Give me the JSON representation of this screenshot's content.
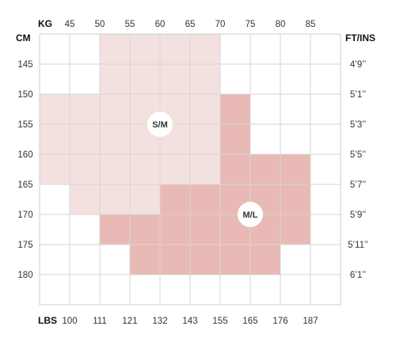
{
  "chart_data": {
    "type": "heatmap",
    "units": {
      "top": "KG",
      "left": "CM",
      "right": "FT/INS",
      "bottom": "LBS"
    },
    "kg_ticks": [
      "45",
      "50",
      "55",
      "60",
      "65",
      "70",
      "75",
      "80",
      "85"
    ],
    "lbs_ticks": [
      "100",
      "111",
      "121",
      "132",
      "143",
      "155",
      "165",
      "176",
      "187"
    ],
    "cm_ticks": [
      "145",
      "150",
      "155",
      "160",
      "165",
      "170",
      "175",
      "180"
    ],
    "ftin_ticks": [
      "4’9’’",
      "5’1’’",
      "5’3’’",
      "5’5’’",
      "5’7’’",
      "5’9’’",
      "5’11’’",
      "6’1’’"
    ],
    "zones": [
      {
        "name": "S/M",
        "color": "#f3e1e0",
        "cells": [
          [
            50,
            140
          ],
          [
            55,
            140
          ],
          [
            60,
            140
          ],
          [
            65,
            140
          ],
          [
            50,
            145
          ],
          [
            55,
            145
          ],
          [
            60,
            145
          ],
          [
            65,
            145
          ],
          [
            40,
            150
          ],
          [
            45,
            150
          ],
          [
            50,
            150
          ],
          [
            55,
            150
          ],
          [
            60,
            150
          ],
          [
            65,
            150
          ],
          [
            40,
            155
          ],
          [
            45,
            155
          ],
          [
            50,
            155
          ],
          [
            55,
            155
          ],
          [
            60,
            155
          ],
          [
            65,
            155
          ],
          [
            40,
            160
          ],
          [
            45,
            160
          ],
          [
            50,
            160
          ],
          [
            55,
            160
          ],
          [
            60,
            160
          ],
          [
            65,
            160
          ],
          [
            45,
            165
          ],
          [
            50,
            165
          ],
          [
            55,
            165
          ]
        ]
      },
      {
        "name": "M/L",
        "color": "#e8b9b5",
        "cells": [
          [
            70,
            150
          ],
          [
            70,
            155
          ],
          [
            70,
            160
          ],
          [
            75,
            160
          ],
          [
            80,
            160
          ],
          [
            60,
            165
          ],
          [
            65,
            165
          ],
          [
            70,
            165
          ],
          [
            75,
            165
          ],
          [
            80,
            165
          ],
          [
            50,
            170
          ],
          [
            55,
            170
          ],
          [
            60,
            170
          ],
          [
            65,
            170
          ],
          [
            70,
            170
          ],
          [
            75,
            170
          ],
          [
            80,
            170
          ],
          [
            55,
            175
          ],
          [
            60,
            175
          ],
          [
            65,
            175
          ],
          [
            70,
            175
          ],
          [
            75,
            175
          ]
        ]
      }
    ],
    "zone_labels": [
      {
        "text": "S/M",
        "kg": 60,
        "cm": 155
      },
      {
        "text": "M/L",
        "kg": 75,
        "cm": 170
      }
    ],
    "grid": true
  }
}
